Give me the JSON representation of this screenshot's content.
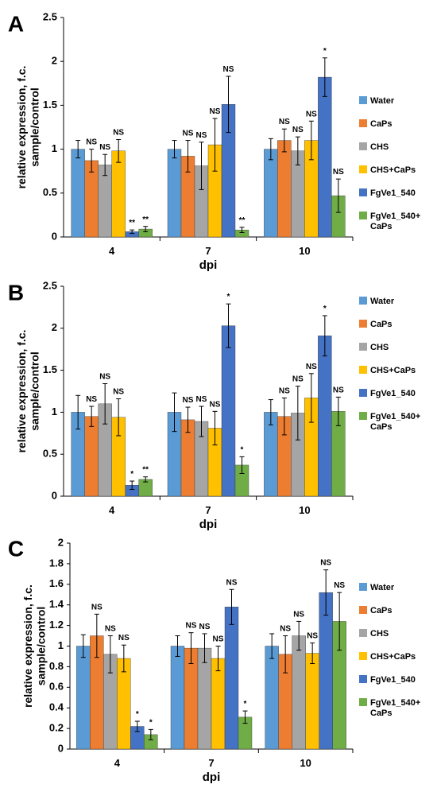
{
  "colors": {
    "Water": "#5b9bd5",
    "CaPs": "#ed7d31",
    "CHS": "#a5a5a5",
    "CHS+CaPs": "#ffc000",
    "FgVe1_540": "#4472c4",
    "FgVe1_540+CaPs": "#70ad47",
    "axis": "#000000",
    "errorbar": "#000000"
  },
  "chart_data": [
    {
      "panel_label": "A",
      "type": "bar",
      "ylabel_lines": [
        "relative expression, f.c.",
        "sample/control"
      ],
      "xlabel": "dpi",
      "categories": [
        "4",
        "7",
        "10"
      ],
      "ylim": [
        0,
        2.5
      ],
      "yticks": [
        0,
        0.5,
        1,
        1.5,
        2,
        2.5
      ],
      "ytick_labels": [
        "0",
        "0.5",
        "1",
        "1.5",
        "2",
        "2.5"
      ],
      "grid": false,
      "legend_placement": "right",
      "series": [
        {
          "name": "Water",
          "legend_lines": [
            "Water"
          ],
          "values": [
            1.0,
            1.0,
            1.0
          ],
          "errors": [
            0.1,
            0.1,
            0.12
          ],
          "labels": [
            "",
            "",
            ""
          ]
        },
        {
          "name": "CaPs",
          "legend_lines": [
            "CaPs"
          ],
          "values": [
            0.87,
            0.92,
            1.1
          ],
          "errors": [
            0.13,
            0.18,
            0.13
          ],
          "labels": [
            "NS",
            "NS",
            "NS"
          ]
        },
        {
          "name": "CHS",
          "legend_lines": [
            "CHS"
          ],
          "values": [
            0.82,
            0.81,
            0.98
          ],
          "errors": [
            0.12,
            0.27,
            0.16
          ],
          "labels": [
            "NS",
            "NS",
            "NS"
          ]
        },
        {
          "name": "CHS+CaPs",
          "legend_lines": [
            "CHS+CaPs"
          ],
          "values": [
            0.98,
            1.05,
            1.1
          ],
          "errors": [
            0.13,
            0.3,
            0.22
          ],
          "labels": [
            "NS",
            "NS",
            "NS"
          ]
        },
        {
          "name": "FgVe1_540",
          "legend_lines": [
            "FgVe1_540"
          ],
          "values": [
            0.06,
            1.51,
            1.82
          ],
          "errors": [
            0.02,
            0.32,
            0.22
          ],
          "labels": [
            "**",
            "NS",
            "*"
          ]
        },
        {
          "name": "FgVe1_540+CaPs",
          "legend_lines": [
            "FgVe1_540+",
            "CaPs"
          ],
          "values": [
            0.09,
            0.08,
            0.47
          ],
          "errors": [
            0.03,
            0.03,
            0.19
          ],
          "labels": [
            "**",
            "**",
            "NS"
          ]
        }
      ]
    },
    {
      "panel_label": "B",
      "type": "bar",
      "ylabel_lines": [
        "relative expression, f.c.",
        "sample/control"
      ],
      "xlabel": "dpi",
      "categories": [
        "4",
        "7",
        "10"
      ],
      "ylim": [
        0,
        2.5
      ],
      "yticks": [
        0,
        0.5,
        1,
        1.5,
        2,
        2.5
      ],
      "ytick_labels": [
        "0",
        "0.5",
        "1",
        "1.5",
        "2",
        "2.5"
      ],
      "grid": false,
      "legend_placement": "right",
      "series": [
        {
          "name": "Water",
          "legend_lines": [
            "Water"
          ],
          "values": [
            1.0,
            1.0,
            1.0
          ],
          "errors": [
            0.2,
            0.23,
            0.15
          ],
          "labels": [
            "",
            "",
            ""
          ]
        },
        {
          "name": "CaPs",
          "legend_lines": [
            "CaPs"
          ],
          "values": [
            0.95,
            0.91,
            0.95
          ],
          "errors": [
            0.12,
            0.15,
            0.22
          ],
          "labels": [
            "NS",
            "NS",
            "NS"
          ]
        },
        {
          "name": "CHS",
          "legend_lines": [
            "CHS"
          ],
          "values": [
            1.1,
            0.89,
            0.99
          ],
          "errors": [
            0.24,
            0.18,
            0.32
          ],
          "labels": [
            "NS",
            "NS",
            "NS"
          ]
        },
        {
          "name": "CHS+CaPs",
          "legend_lines": [
            "CHS+CaPs"
          ],
          "values": [
            0.94,
            0.81,
            1.17
          ],
          "errors": [
            0.22,
            0.2,
            0.29
          ],
          "labels": [
            "NS",
            "NS",
            "NS"
          ]
        },
        {
          "name": "FgVe1_540",
          "legend_lines": [
            "FgVe1_540"
          ],
          "values": [
            0.13,
            2.03,
            1.91
          ],
          "errors": [
            0.05,
            0.26,
            0.24
          ],
          "labels": [
            "*",
            "*",
            "*"
          ]
        },
        {
          "name": "FgVe1_540+CaPs",
          "legend_lines": [
            "FgVe1_540+",
            "CaPs"
          ],
          "values": [
            0.2,
            0.37,
            1.01
          ],
          "errors": [
            0.03,
            0.1,
            0.17
          ],
          "labels": [
            "**",
            "*",
            "NS"
          ]
        }
      ]
    },
    {
      "panel_label": "C",
      "type": "bar",
      "ylabel_lines": [
        "relative expression, f.c.",
        "sample/control"
      ],
      "xlabel": "dpi",
      "categories": [
        "4",
        "7",
        "10"
      ],
      "ylim": [
        0,
        2
      ],
      "yticks": [
        0,
        0.2,
        0.4,
        0.6,
        0.8,
        1,
        1.2,
        1.4,
        1.6,
        1.8,
        2
      ],
      "ytick_labels": [
        "0",
        "0.2",
        "0.4",
        "0.6",
        "0.8",
        "1",
        "1.2",
        "1.4",
        "1.6",
        "1.8",
        "2"
      ],
      "grid": false,
      "legend_placement": "right",
      "series": [
        {
          "name": "Water",
          "legend_lines": [
            "Water"
          ],
          "values": [
            1.0,
            1.0,
            1.0
          ],
          "errors": [
            0.11,
            0.1,
            0.12
          ],
          "labels": [
            "",
            "",
            ""
          ]
        },
        {
          "name": "CaPs",
          "legend_lines": [
            "CaPs"
          ],
          "values": [
            1.1,
            0.98,
            0.92
          ],
          "errors": [
            0.21,
            0.15,
            0.18
          ],
          "labels": [
            "NS",
            "NS",
            "NS"
          ]
        },
        {
          "name": "CHS",
          "legend_lines": [
            "CHS"
          ],
          "values": [
            0.92,
            0.98,
            1.1
          ],
          "errors": [
            0.18,
            0.14,
            0.14
          ],
          "labels": [
            "NS",
            "NS",
            "NS"
          ]
        },
        {
          "name": "CHS+CaPs",
          "legend_lines": [
            "CHS+CaPs"
          ],
          "values": [
            0.88,
            0.88,
            0.93
          ],
          "errors": [
            0.13,
            0.12,
            0.1
          ],
          "labels": [
            "NS",
            "NS",
            "NS"
          ]
        },
        {
          "name": "FgVe1_540",
          "legend_lines": [
            "FgVe1_540"
          ],
          "values": [
            0.22,
            1.38,
            1.52
          ],
          "errors": [
            0.05,
            0.17,
            0.22
          ],
          "labels": [
            "*",
            "NS",
            "NS"
          ]
        },
        {
          "name": "FgVe1_540+CaPs",
          "legend_lines": [
            "FgVe1_540+",
            "CaPs"
          ],
          "values": [
            0.14,
            0.31,
            1.24
          ],
          "errors": [
            0.05,
            0.06,
            0.28
          ],
          "labels": [
            "*",
            "*",
            "NS"
          ]
        }
      ]
    }
  ]
}
